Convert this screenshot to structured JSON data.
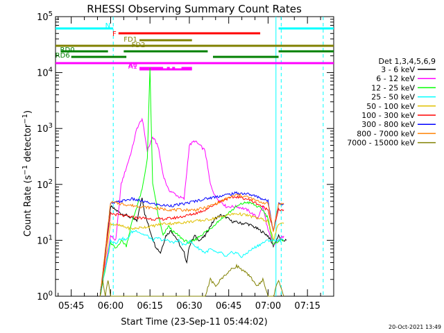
{
  "chart_data": {
    "type": "line",
    "title": "RHESSI Observing Summary Count Rates",
    "xlabel": "Start Time (23-Sep-11 05:44:02)",
    "ylabel": "Count Rate (s⁻¹ detector⁻¹)",
    "ylabel_main": "Count Rate (s",
    "ylabel_sup1": "−1",
    "ylabel_mid": " detector",
    "ylabel_sup2": "−1",
    "ylabel_end": ")",
    "yscale": "log",
    "xlim": [
      "05:39",
      "07:25"
    ],
    "ylim": [
      1,
      100000
    ],
    "x_ticks": [
      "05:45",
      "06:00",
      "06:15",
      "06:30",
      "06:45",
      "07:00",
      "07:15"
    ],
    "y_ticks": [
      "10^0",
      "10^1",
      "10^2",
      "10^3",
      "10^4",
      "10^5"
    ],
    "y_tick_values": [
      1,
      10,
      100,
      1000,
      10000,
      100000
    ],
    "legend_title": "Det 1,3,4,5,6,9",
    "timestamp": "20-Oct-2021 13:49",
    "series": [
      {
        "name": "3 - 6 keV",
        "color": "#000000",
        "x": [
          "05:56",
          "06:00",
          "06:04",
          "06:06",
          "06:08",
          "06:10",
          "06:12",
          "06:13",
          "06:15",
          "06:17",
          "06:19",
          "06:21",
          "06:23",
          "06:25",
          "06:26",
          "06:27",
          "06:28",
          "06:29",
          "06:30",
          "06:32",
          "06:34",
          "06:36",
          "06:38",
          "06:40",
          "06:42",
          "06:44",
          "06:46",
          "06:48",
          "06:50",
          "06:52",
          "06:54",
          "06:56",
          "06:58",
          "07:00",
          "07:02",
          "07:04",
          "07:05",
          "07:07"
        ],
        "y": [
          1,
          40,
          30,
          28,
          25,
          22,
          60,
          30,
          15,
          8,
          6,
          12,
          15,
          11,
          9,
          7,
          6,
          4,
          8,
          12,
          10,
          12,
          18,
          25,
          28,
          26,
          22,
          21,
          20,
          20,
          18,
          16,
          14,
          12,
          8,
          12,
          10,
          10
        ]
      },
      {
        "name": "6 - 12 keV",
        "color": "#ff00ff",
        "x": [
          "05:56",
          "06:00",
          "06:02",
          "06:04",
          "06:06",
          "06:08",
          "06:10",
          "06:12",
          "06:14",
          "06:16",
          "06:18",
          "06:20",
          "06:22",
          "06:24",
          "06:26",
          "06:28",
          "06:30",
          "06:32",
          "06:34",
          "06:36",
          "06:38",
          "06:40",
          "06:42",
          "06:44",
          "06:46",
          "06:48",
          "06:50",
          "06:52",
          "06:54",
          "06:56",
          "06:58",
          "07:00",
          "07:02",
          "07:04",
          "07:06"
        ],
        "y": [
          1,
          12,
          10,
          100,
          200,
          400,
          1000,
          1500,
          400,
          700,
          500,
          150,
          80,
          70,
          60,
          55,
          500,
          600,
          500,
          400,
          100,
          60,
          50,
          40,
          40,
          40,
          38,
          35,
          30,
          25,
          40,
          15,
          8,
          10,
          12
        ]
      },
      {
        "name": "12 - 25 keV",
        "color": "#00ff00",
        "x": [
          "05:56",
          "06:00",
          "06:02",
          "06:04",
          "06:06",
          "06:08",
          "06:10",
          "06:12",
          "06:13",
          "06:14",
          "06:15",
          "06:16",
          "06:17",
          "06:18",
          "06:20",
          "06:22",
          "06:24",
          "06:26",
          "06:28",
          "06:30",
          "06:32",
          "06:34",
          "06:36",
          "06:38",
          "06:40",
          "06:42",
          "06:44",
          "06:46",
          "06:48",
          "06:50",
          "06:52",
          "06:54",
          "06:56",
          "06:58",
          "07:00",
          "07:02",
          "07:04",
          "07:06"
        ],
        "y": [
          1,
          9,
          7,
          10,
          8,
          20,
          40,
          80,
          150,
          300,
          12000,
          100,
          60,
          30,
          12,
          18,
          14,
          12,
          10,
          9,
          10,
          12,
          14,
          16,
          20,
          24,
          28,
          34,
          40,
          45,
          48,
          45,
          40,
          35,
          25,
          8,
          10,
          10
        ]
      },
      {
        "name": "25 - 50 keV",
        "color": "#00ffff",
        "x": [
          "05:56",
          "06:00",
          "06:02",
          "06:04",
          "06:06",
          "06:08",
          "06:10",
          "06:12",
          "06:14",
          "06:16",
          "06:18",
          "06:20",
          "06:22",
          "06:24",
          "06:26",
          "06:28",
          "06:30",
          "06:32",
          "06:34",
          "06:36",
          "06:38",
          "06:40",
          "06:42",
          "06:44",
          "06:46",
          "06:48",
          "06:50",
          "06:52",
          "06:54",
          "06:56",
          "06:58",
          "07:00",
          "07:02",
          "07:04",
          "07:06"
        ],
        "y": [
          1,
          10,
          9,
          11,
          10,
          14,
          15,
          13,
          12,
          10,
          11,
          10,
          10,
          9,
          10,
          8,
          10,
          8,
          7,
          6,
          7,
          6,
          6,
          5,
          6,
          6,
          5,
          6,
          7,
          8,
          9,
          10,
          10,
          10,
          10
        ]
      },
      {
        "name": "50 - 100 keV",
        "color": "#e0c000",
        "x": [
          "05:56",
          "06:00",
          "06:04",
          "06:08",
          "06:12",
          "06:16",
          "06:20",
          "06:24",
          "06:28",
          "06:32",
          "06:36",
          "06:40",
          "06:44",
          "06:48",
          "06:52",
          "06:56",
          "07:00",
          "07:02",
          "07:04",
          "07:06"
        ],
        "y": [
          1,
          20,
          18,
          16,
          17,
          18,
          20,
          20,
          21,
          22,
          23,
          25,
          28,
          30,
          28,
          25,
          22,
          10,
          20,
          20
        ]
      },
      {
        "name": "100 - 300 keV",
        "color": "#ff0000",
        "x": [
          "05:56",
          "06:00",
          "06:04",
          "06:08",
          "06:12",
          "06:16",
          "06:20",
          "06:24",
          "06:28",
          "06:32",
          "06:36",
          "06:40",
          "06:44",
          "06:48",
          "06:52",
          "06:56",
          "07:00",
          "07:02",
          "07:04",
          "07:06"
        ],
        "y": [
          1,
          30,
          28,
          26,
          25,
          24,
          24,
          25,
          27,
          30,
          35,
          45,
          55,
          60,
          55,
          45,
          35,
          15,
          35,
          35
        ]
      },
      {
        "name": "300 - 800 keV",
        "color": "#0000ff",
        "x": [
          "05:56",
          "06:00",
          "06:04",
          "06:08",
          "06:12",
          "06:16",
          "06:20",
          "06:24",
          "06:28",
          "06:32",
          "06:36",
          "06:40",
          "06:44",
          "06:48",
          "06:52",
          "06:56",
          "07:00",
          "07:02",
          "07:04",
          "07:06"
        ],
        "y": [
          1,
          45,
          50,
          55,
          50,
          45,
          42,
          42,
          45,
          50,
          55,
          60,
          65,
          70,
          68,
          60,
          50,
          15,
          45,
          45
        ]
      },
      {
        "name": "800 - 7000 keV",
        "color": "#ff8000",
        "x": [
          "05:56",
          "06:00",
          "06:04",
          "06:08",
          "06:12",
          "06:16",
          "06:20",
          "06:24",
          "06:28",
          "06:32",
          "06:36",
          "06:40",
          "06:44",
          "06:48",
          "06:52",
          "06:56",
          "07:00",
          "07:02",
          "07:04",
          "07:06"
        ],
        "y": [
          1,
          48,
          45,
          42,
          40,
          38,
          36,
          35,
          35,
          35,
          38,
          45,
          55,
          65,
          60,
          50,
          45,
          15,
          45,
          45
        ]
      },
      {
        "name": "7000 - 15000 keV",
        "color": "#808000",
        "x": [
          "05:56",
          "05:57",
          "05:58",
          "05:59",
          "06:00",
          "06:02",
          "06:35",
          "06:36",
          "06:38",
          "06:40",
          "06:42",
          "06:44",
          "06:46",
          "06:48",
          "06:50",
          "06:52",
          "06:54",
          "06:56",
          "06:58",
          "07:00",
          "07:02",
          "07:04",
          "07:06"
        ],
        "y": [
          1,
          2,
          1,
          2,
          1,
          1,
          1,
          1,
          2,
          1.5,
          2,
          2.5,
          3,
          3.5,
          3,
          2.5,
          2,
          1.5,
          2,
          1,
          1,
          2,
          1
        ]
      }
    ],
    "flag_bars": [
      {
        "label": "N",
        "color": "#00ffff",
        "segments": [
          [
            "05:39",
            "06:01"
          ],
          [
            "07:04",
            "07:25"
          ]
        ]
      },
      {
        "label": "F",
        "color": "#ff0000",
        "segments": [
          [
            "06:03",
            "06:57"
          ]
        ]
      },
      {
        "label": "FD1",
        "color": "#808000",
        "segments": [
          [
            "06:11",
            "06:31"
          ]
        ]
      },
      {
        "label": "FD2",
        "color": "#808000",
        "segments": [
          [
            "06:14",
            "06:20"
          ],
          [
            "06:23",
            "06:23"
          ],
          [
            "06:25",
            "06:25"
          ],
          [
            "06:28",
            "06:31"
          ]
        ]
      },
      {
        "label": "",
        "color": "#808000",
        "segments": [
          [
            "05:39",
            "07:25"
          ]
        ]
      },
      {
        "label": "RD0",
        "color": "#008000",
        "segments": [
          [
            "05:41",
            "05:59"
          ],
          [
            "06:05",
            "06:37"
          ],
          [
            "07:04",
            "07:25"
          ]
        ]
      },
      {
        "label": "RD6",
        "color": "#008000",
        "segments": [
          [
            "05:45",
            "06:06"
          ],
          [
            "06:39",
            "07:04"
          ]
        ]
      },
      {
        "label": "",
        "color": "#ff00ff",
        "segments": [
          [
            "05:39",
            "07:25"
          ]
        ]
      },
      {
        "label": "A0",
        "color": "#ff00ff",
        "segments": [
          [
            "06:11",
            "06:20"
          ],
          [
            "06:22",
            "06:22"
          ],
          [
            "06:24",
            "06:24"
          ],
          [
            "06:27",
            "06:31"
          ]
        ]
      },
      {
        "label": "A1",
        "color": "#ff00ff",
        "segments": [
          [
            "06:11",
            "06:31"
          ]
        ]
      }
    ],
    "vlines": [
      {
        "x": "06:01",
        "color": "#00ffff",
        "style": "dashed"
      },
      {
        "x": "07:05",
        "color": "#00ffff",
        "style": "dashed"
      },
      {
        "x": "07:21",
        "color": "#00ffff",
        "style": "dashed"
      },
      {
        "x": "07:03",
        "color": "#00ffff",
        "style": "solid"
      }
    ]
  }
}
